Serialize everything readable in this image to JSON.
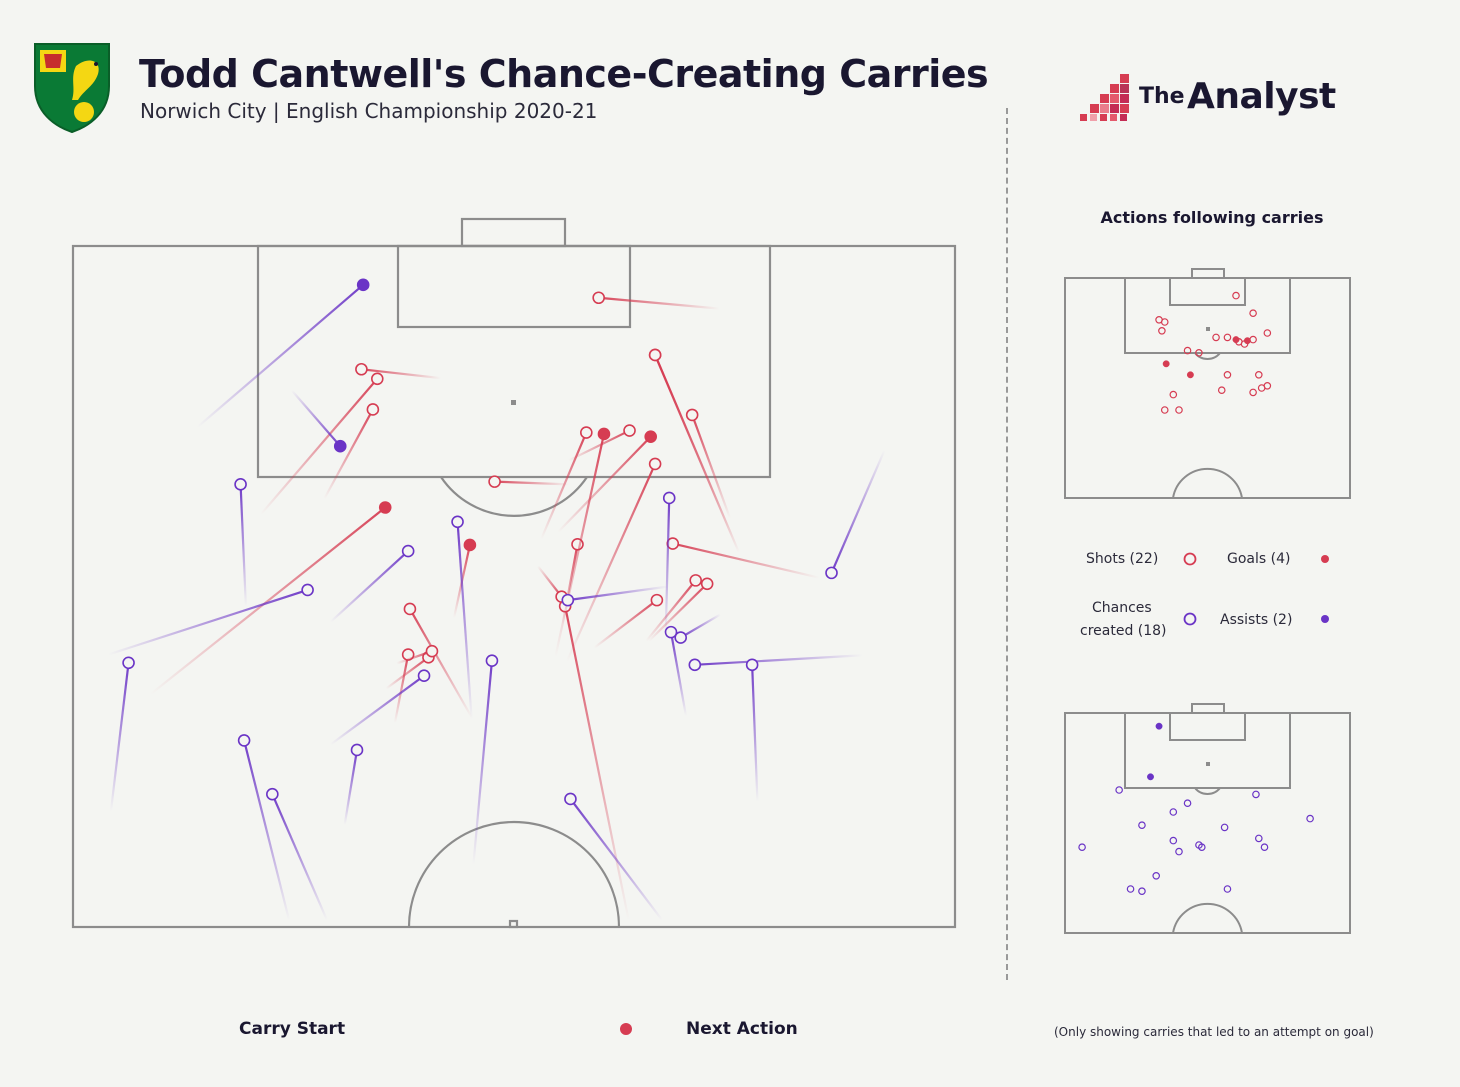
{
  "header": {
    "title": "Todd Cantwell's Chance-Creating Carries",
    "subtitle": "Norwich City | English Championship 2020-21"
  },
  "brand": {
    "the": "The",
    "name": "Analyst"
  },
  "colors": {
    "shot": "#d63c52",
    "chance": "#6a34c6",
    "pitch_line": "#8c8c8c",
    "background": "#f4f5f2"
  },
  "chart_data": [
    {
      "type": "scatter",
      "description_type": "carry-map",
      "pitch": "attacking-half",
      "units": "x = 0-100 across pitch width (left to right), y = 0-100 distance from goal line toward halfway line",
      "series": [
        {
          "name": "Shots",
          "color": "#d63c52",
          "carries": [
            {
              "start": [
                73.3,
                9.2
              ],
              "end": [
                59.6,
                7.6
              ],
              "outcome": "shot"
            },
            {
              "start": [
                41.7,
                19.4
              ],
              "end": [
                32.7,
                18.1
              ],
              "outcome": "shot"
            },
            {
              "start": [
                21.3,
                39.4
              ],
              "end": [
                34.5,
                19.5
              ],
              "outcome": "shot"
            },
            {
              "start": [
                28.5,
                37.1
              ],
              "end": [
                34.0,
                24.0
              ],
              "outcome": "shot"
            },
            {
              "start": [
                75.5,
                45.0
              ],
              "end": [
                66.0,
                16.0
              ],
              "outcome": "shot"
            },
            {
              "start": [
                75.5,
                45.0
              ],
              "end": [
                66.0,
                16.0
              ],
              "outcome": "shot"
            },
            {
              "start": [
                74.5,
                40.0
              ],
              "end": [
                70.2,
                24.8
              ],
              "outcome": "shot"
            },
            {
              "start": [
                56.2,
                31.5
              ],
              "end": [
                63.1,
                27.1
              ],
              "outcome": "shot"
            },
            {
              "start": [
                53.1,
                43.0
              ],
              "end": [
                58.2,
                27.4
              ],
              "outcome": "shot"
            },
            {
              "start": [
                56.2,
                35.0
              ],
              "end": [
                47.8,
                34.6
              ],
              "outcome": "shot"
            },
            {
              "start": [
                55.5,
                55.5
              ],
              "end": [
                57.2,
                43.8
              ],
              "outcome": "shot"
            },
            {
              "start": [
                56.0,
                61.0
              ],
              "end": [
                66.0,
                32.0
              ],
              "outcome": "shot"
            },
            {
              "start": [
                52.7,
                47.0
              ],
              "end": [
                55.4,
                51.5
              ],
              "outcome": "shot"
            },
            {
              "start": [
                84.6,
                48.7
              ],
              "end": [
                68.0,
                43.7
              ],
              "outcome": "shot"
            },
            {
              "start": [
                65.0,
                58.0
              ],
              "end": [
                70.6,
                49.1
              ],
              "outcome": "shot"
            },
            {
              "start": [
                59.1,
                59.0
              ],
              "end": [
                66.2,
                52.0
              ],
              "outcome": "shot"
            },
            {
              "start": [
                65.3,
                58.0
              ],
              "end": [
                71.9,
                49.6
              ],
              "outcome": "shot"
            },
            {
              "start": [
                45.2,
                69.2
              ],
              "end": [
                38.2,
                53.3
              ],
              "outcome": "shot"
            },
            {
              "start": [
                36.5,
                70.0
              ],
              "end": [
                38.0,
                60.0
              ],
              "outcome": "shot"
            },
            {
              "start": [
                35.5,
                65.0
              ],
              "end": [
                40.3,
                60.4
              ],
              "outcome": "shot"
            },
            {
              "start": [
                63.0,
                99.0
              ],
              "end": [
                55.8,
                52.9
              ],
              "outcome": "shot"
            },
            {
              "start": [
                36.7,
                61.3
              ],
              "end": [
                40.7,
                59.5
              ],
              "outcome": "shot"
            }
          ],
          "goals": [
            {
              "start": [
                8.8,
                65.8
              ],
              "end": [
                35.4,
                38.4
              ],
              "outcome": "goal"
            },
            {
              "start": [
                54.7,
                60.3
              ],
              "end": [
                60.2,
                27.6
              ],
              "outcome": "goal"
            },
            {
              "start": [
                43.2,
                54.6
              ],
              "end": [
                45.0,
                43.9
              ],
              "outcome": "goal"
            },
            {
              "start": [
                55.0,
                42.0
              ],
              "end": [
                65.5,
                28.0
              ],
              "outcome": "goal"
            }
          ]
        },
        {
          "name": "Chances created",
          "color": "#6a34c6",
          "carries": [
            {
              "start": [
                19.6,
                52.9
              ],
              "end": [
                19.0,
                35.0
              ],
              "outcome": "chance"
            },
            {
              "start": [
                29.2,
                55.2
              ],
              "end": [
                38.0,
                44.8
              ],
              "outcome": "chance"
            },
            {
              "start": [
                4.0,
                60.0
              ],
              "end": [
                26.6,
                50.5
              ],
              "outcome": "chance"
            },
            {
              "start": [
                4.3,
                83.0
              ],
              "end": [
                6.3,
                61.2
              ],
              "outcome": "chance"
            },
            {
              "start": [
                45.2,
                69.5
              ],
              "end": [
                43.6,
                40.5
              ],
              "outcome": "chance"
            },
            {
              "start": [
                45.4,
                90.8
              ],
              "end": [
                47.5,
                60.9
              ],
              "outcome": "chance"
            },
            {
              "start": [
                67.2,
                57.0
              ],
              "end": [
                67.6,
                37.0
              ],
              "outcome": "chance"
            },
            {
              "start": [
                67.5,
                50.0
              ],
              "end": [
                56.1,
                52.0
              ],
              "outcome": "chance"
            },
            {
              "start": [
                73.4,
                54.1
              ],
              "end": [
                68.9,
                57.5
              ],
              "outcome": "chance"
            },
            {
              "start": [
                89.5,
                60.1
              ],
              "end": [
                70.5,
                61.5
              ],
              "outcome": "chance"
            },
            {
              "start": [
                77.6,
                81.6
              ],
              "end": [
                77.0,
                61.5
              ],
              "outcome": "chance"
            },
            {
              "start": [
                29.2,
                73.2
              ],
              "end": [
                39.8,
                63.1
              ],
              "outcome": "chance"
            },
            {
              "start": [
                30.8,
                85.0
              ],
              "end": [
                32.2,
                74.0
              ],
              "outcome": "chance"
            },
            {
              "start": [
                28.8,
                99.0
              ],
              "end": [
                22.6,
                80.5
              ],
              "outcome": "chance"
            },
            {
              "start": [
                24.5,
                99.0
              ],
              "end": [
                19.4,
                72.6
              ],
              "outcome": "chance"
            },
            {
              "start": [
                66.8,
                99.0
              ],
              "end": [
                56.4,
                81.2
              ],
              "outcome": "chance"
            },
            {
              "start": [
                92.0,
                30.0
              ],
              "end": [
                86.0,
                48.0
              ],
              "outcome": "chance"
            },
            {
              "start": [
                69.5,
                69.0
              ],
              "end": [
                67.8,
                56.7
              ],
              "outcome": "chance"
            }
          ],
          "assists": [
            {
              "start": [
                14.1,
                26.6
              ],
              "end": [
                32.9,
                5.7
              ],
              "outcome": "assist"
            },
            {
              "start": [
                24.8,
                21.2
              ],
              "end": [
                30.3,
                29.4
              ],
              "outcome": "assist"
            }
          ]
        }
      ]
    },
    {
      "type": "scatter",
      "description_type": "mini-pitch",
      "title": "Actions following carries",
      "panel": "shots",
      "points": {
        "shots": [
          [
            60.0,
            8.0
          ],
          [
            33.0,
            19.0
          ],
          [
            35.0,
            20.0
          ],
          [
            34.0,
            24.0
          ],
          [
            66.0,
            16.0
          ],
          [
            71.0,
            25.0
          ],
          [
            63.0,
            30.0
          ],
          [
            57.0,
            27.0
          ],
          [
            47.0,
            34.0
          ],
          [
            57.0,
            44.0
          ],
          [
            68.0,
            44.0
          ],
          [
            71.0,
            49.0
          ],
          [
            69.0,
            50.0
          ],
          [
            55.0,
            51.0
          ],
          [
            66.0,
            52.0
          ],
          [
            38.0,
            53.0
          ],
          [
            40.0,
            60.0
          ],
          [
            35.0,
            60.0
          ],
          [
            66.0,
            28.0
          ],
          [
            53.0,
            27.0
          ],
          [
            61.0,
            29.0
          ],
          [
            43.0,
            33.0
          ]
        ],
        "goals": [
          [
            35.5,
            39.0
          ],
          [
            60.0,
            28.0
          ],
          [
            44.0,
            44.0
          ],
          [
            64.0,
            28.5
          ]
        ]
      }
    },
    {
      "type": "scatter",
      "description_type": "mini-pitch",
      "panel": "chances",
      "points": {
        "chances": [
          [
            19.0,
            35.0
          ],
          [
            38.0,
            45.0
          ],
          [
            27.0,
            51.0
          ],
          [
            6.0,
            61.0
          ],
          [
            43.0,
            41.0
          ],
          [
            48.0,
            61.0
          ],
          [
            67.0,
            37.0
          ],
          [
            56.0,
            52.0
          ],
          [
            68.0,
            57.0
          ],
          [
            70.0,
            61.0
          ],
          [
            86.0,
            48.0
          ],
          [
            40.0,
            63.0
          ],
          [
            32.0,
            74.0
          ],
          [
            23.0,
            80.0
          ],
          [
            27.0,
            81.0
          ],
          [
            57.0,
            80.0
          ],
          [
            38.0,
            58.0
          ],
          [
            47.0,
            60.0
          ]
        ],
        "assists": [
          [
            33.0,
            6.0
          ],
          [
            30.0,
            29.0
          ]
        ]
      }
    }
  ],
  "legend": {
    "shots": "Shots (22)",
    "goals": "Goals (4)",
    "chances_line1": "Chances",
    "chances_line2": "created (18)",
    "assists": "Assists (2)"
  },
  "bottom": {
    "carry_start": "Carry Start",
    "next_action": "Next Action",
    "footnote": "(Only showing carries that led to an attempt on goal)"
  }
}
